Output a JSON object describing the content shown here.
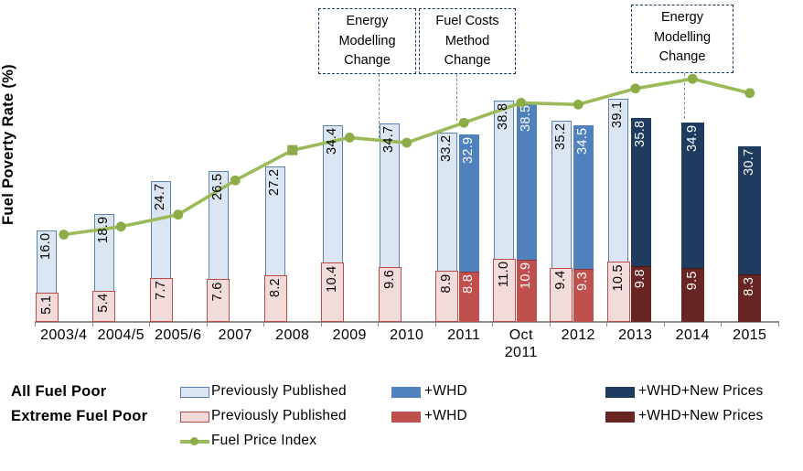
{
  "chart_data": {
    "type": "bar",
    "subtype": "grouped bars with overlaid line series",
    "title": "",
    "ylabel": "Fuel Poverty Rate (%)",
    "xlabel": "",
    "ylim": [
      0,
      45
    ],
    "grid": false,
    "y_axis_ticks_visible": false,
    "categories": [
      "2003/4",
      "2004/5",
      "2005/6",
      "2007",
      "2008",
      "2009",
      "2010",
      "2011",
      "Oct 2011",
      "2012",
      "2013",
      "2014",
      "2015"
    ],
    "series": [
      {
        "key": "all_prev",
        "name": "All Fuel Poor - Previously Published",
        "values": [
          16.0,
          18.9,
          24.7,
          26.5,
          27.2,
          34.4,
          34.7,
          33.2,
          38.8,
          35.2,
          39.1,
          null,
          null
        ]
      },
      {
        "key": "all_whd",
        "name": "All Fuel Poor - +WHD",
        "values": [
          null,
          null,
          null,
          null,
          null,
          null,
          null,
          32.9,
          38.5,
          34.5,
          null,
          null,
          null
        ]
      },
      {
        "key": "all_new",
        "name": "All Fuel Poor - +WHD+New Prices",
        "values": [
          null,
          null,
          null,
          null,
          null,
          null,
          null,
          null,
          null,
          null,
          35.8,
          34.9,
          30.7
        ]
      },
      {
        "key": "ext_prev",
        "name": "Extreme Fuel Poor - Previously Published",
        "values": [
          5.1,
          5.4,
          7.7,
          7.6,
          8.2,
          10.4,
          9.6,
          8.9,
          11.0,
          9.4,
          10.5,
          null,
          null
        ]
      },
      {
        "key": "ext_whd",
        "name": "Extreme Fuel Poor - +WHD",
        "values": [
          null,
          null,
          null,
          null,
          null,
          null,
          null,
          8.8,
          10.9,
          9.3,
          null,
          null,
          null
        ]
      },
      {
        "key": "ext_new",
        "name": "Extreme Fuel Poor - +WHD+New Prices",
        "values": [
          null,
          null,
          null,
          null,
          null,
          null,
          null,
          null,
          null,
          null,
          9.8,
          9.5,
          8.3
        ]
      },
      {
        "key": "fuel_price",
        "name": "Fuel Price Index",
        "type": "line",
        "note": "no value labels or scale shown; values estimated on the left-axis pixel scale",
        "values": [
          15.3,
          16.7,
          18.8,
          24.8,
          30.1,
          32.3,
          31.4,
          34.9,
          38.4,
          38.1,
          40.9,
          42.6,
          40.1
        ],
        "marker_shapes": [
          "circle",
          "circle",
          "circle",
          "circle",
          "square",
          "circle",
          "circle",
          "circle",
          "circle",
          "circle",
          "circle",
          "circle",
          "circle"
        ]
      }
    ],
    "annotations": [
      {
        "lines": [
          "Energy",
          "Modelling",
          "Change"
        ]
      },
      {
        "lines": [
          "Fuel Costs",
          "Method",
          "Change"
        ]
      },
      {
        "lines": [
          "Energy",
          "Modelling",
          "Change"
        ]
      }
    ]
  },
  "legend": {
    "rows": [
      {
        "title": "All Fuel Poor",
        "items": [
          {
            "swatch": "light-blue-outlined",
            "label": "Previously Published"
          },
          {
            "swatch": "medium-blue",
            "label": "+WHD"
          },
          {
            "swatch": "dark-blue",
            "label": "+WHD+New Prices"
          }
        ]
      },
      {
        "title": "Extreme Fuel Poor",
        "items": [
          {
            "swatch": "light-red-outlined",
            "label": "Previously Published"
          },
          {
            "swatch": "medium-red",
            "label": "+WHD"
          },
          {
            "swatch": "dark-red",
            "label": "+WHD+New Prices"
          }
        ]
      },
      {
        "title": "",
        "items": [
          {
            "swatch": "green-line-marker",
            "label": "Fuel Price Index"
          }
        ]
      }
    ]
  },
  "colors": {
    "all_prev_fill": "#DCE6F2",
    "all_prev_border": "#5B83B4",
    "all_whd": "#4F81BD",
    "all_whd_top": "#2F5A8C",
    "all_new": "#1F3B5F",
    "all_new_top": "#142A46",
    "ext_prev_fill": "#F2DCDB",
    "ext_prev_border": "#BE4B48",
    "ext_whd": "#C0504D",
    "ext_whd_top": "#8E3836",
    "ext_new": "#682523",
    "ext_new_top": "#451715",
    "fuel_price_line": "#9BBB59",
    "fuel_price_marker": "#8CAC49",
    "axis": "#8C8C8C",
    "annotation_border": "#17375E",
    "drop_line": "#8A8A8A",
    "label_on_light": "#000000",
    "label_on_dark": "#FFFFFF"
  }
}
